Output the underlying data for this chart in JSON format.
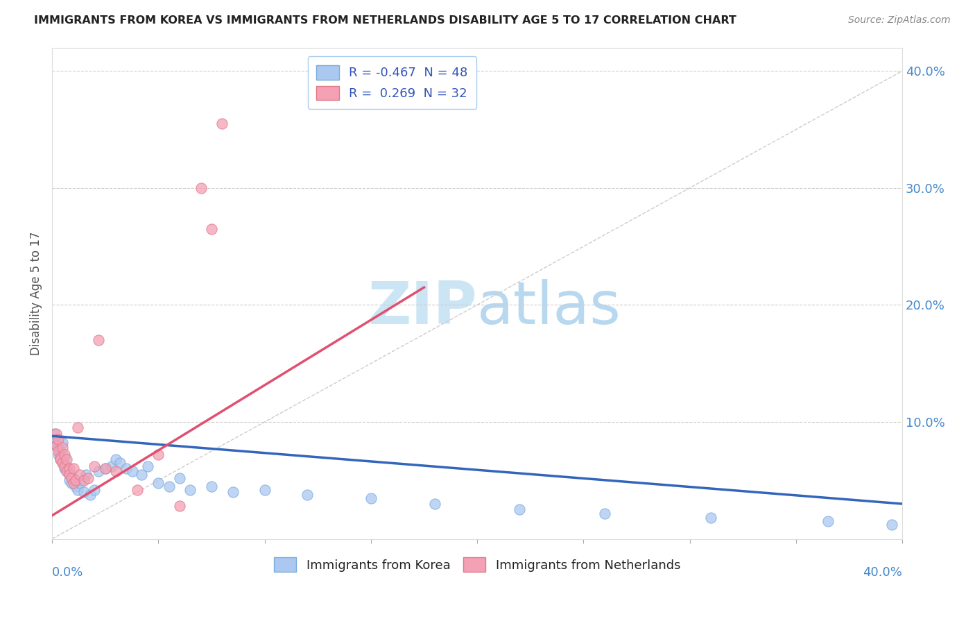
{
  "title": "IMMIGRANTS FROM KOREA VS IMMIGRANTS FROM NETHERLANDS DISABILITY AGE 5 TO 17 CORRELATION CHART",
  "source": "Source: ZipAtlas.com",
  "ylabel": "Disability Age 5 to 17",
  "xlim": [
    0.0,
    0.4
  ],
  "ylim": [
    0.0,
    0.42
  ],
  "korea_R": -0.467,
  "korea_N": 48,
  "netherlands_R": 0.269,
  "netherlands_N": 32,
  "korea_color": "#aac8f0",
  "netherlands_color": "#f4a0b5",
  "korea_line_color": "#3366bb",
  "netherlands_line_color": "#e05070",
  "background_color": "#ffffff",
  "watermark_text": "ZIPatlas",
  "watermark_color": "#cce5f5",
  "korea_scatter": [
    [
      0.001,
      0.09
    ],
    [
      0.002,
      0.085
    ],
    [
      0.002,
      0.08
    ],
    [
      0.003,
      0.078
    ],
    [
      0.003,
      0.072
    ],
    [
      0.004,
      0.075
    ],
    [
      0.004,
      0.068
    ],
    [
      0.005,
      0.082
    ],
    [
      0.005,
      0.065
    ],
    [
      0.006,
      0.07
    ],
    [
      0.006,
      0.06
    ],
    [
      0.007,
      0.062
    ],
    [
      0.007,
      0.058
    ],
    [
      0.008,
      0.055
    ],
    [
      0.008,
      0.05
    ],
    [
      0.009,
      0.048
    ],
    [
      0.01,
      0.052
    ],
    [
      0.011,
      0.045
    ],
    [
      0.012,
      0.042
    ],
    [
      0.013,
      0.048
    ],
    [
      0.015,
      0.04
    ],
    [
      0.016,
      0.055
    ],
    [
      0.018,
      0.038
    ],
    [
      0.02,
      0.042
    ],
    [
      0.022,
      0.058
    ],
    [
      0.025,
      0.06
    ],
    [
      0.028,
      0.062
    ],
    [
      0.03,
      0.068
    ],
    [
      0.032,
      0.065
    ],
    [
      0.035,
      0.06
    ],
    [
      0.038,
      0.058
    ],
    [
      0.042,
      0.055
    ],
    [
      0.045,
      0.062
    ],
    [
      0.05,
      0.048
    ],
    [
      0.055,
      0.045
    ],
    [
      0.06,
      0.052
    ],
    [
      0.065,
      0.042
    ],
    [
      0.075,
      0.045
    ],
    [
      0.085,
      0.04
    ],
    [
      0.1,
      0.042
    ],
    [
      0.12,
      0.038
    ],
    [
      0.15,
      0.035
    ],
    [
      0.18,
      0.03
    ],
    [
      0.22,
      0.025
    ],
    [
      0.26,
      0.022
    ],
    [
      0.31,
      0.018
    ],
    [
      0.365,
      0.015
    ],
    [
      0.395,
      0.012
    ]
  ],
  "netherlands_scatter": [
    [
      0.002,
      0.09
    ],
    [
      0.002,
      0.08
    ],
    [
      0.003,
      0.085
    ],
    [
      0.003,
      0.075
    ],
    [
      0.004,
      0.07
    ],
    [
      0.004,
      0.068
    ],
    [
      0.005,
      0.078
    ],
    [
      0.005,
      0.065
    ],
    [
      0.006,
      0.072
    ],
    [
      0.006,
      0.062
    ],
    [
      0.007,
      0.068
    ],
    [
      0.007,
      0.058
    ],
    [
      0.008,
      0.06
    ],
    [
      0.008,
      0.055
    ],
    [
      0.009,
      0.052
    ],
    [
      0.01,
      0.06
    ],
    [
      0.01,
      0.048
    ],
    [
      0.011,
      0.05
    ],
    [
      0.012,
      0.095
    ],
    [
      0.013,
      0.055
    ],
    [
      0.015,
      0.05
    ],
    [
      0.017,
      0.052
    ],
    [
      0.02,
      0.062
    ],
    [
      0.022,
      0.17
    ],
    [
      0.025,
      0.06
    ],
    [
      0.03,
      0.058
    ],
    [
      0.04,
      0.042
    ],
    [
      0.05,
      0.072
    ],
    [
      0.06,
      0.028
    ],
    [
      0.07,
      0.3
    ],
    [
      0.075,
      0.265
    ],
    [
      0.08,
      0.355
    ]
  ],
  "korea_trendline": [
    [
      0.0,
      0.088
    ],
    [
      0.4,
      0.03
    ]
  ],
  "netherlands_trendline": [
    [
      0.0,
      0.02
    ],
    [
      0.175,
      0.215
    ]
  ],
  "diagonal_trendline": [
    [
      0.0,
      0.0
    ],
    [
      0.4,
      0.4
    ]
  ]
}
